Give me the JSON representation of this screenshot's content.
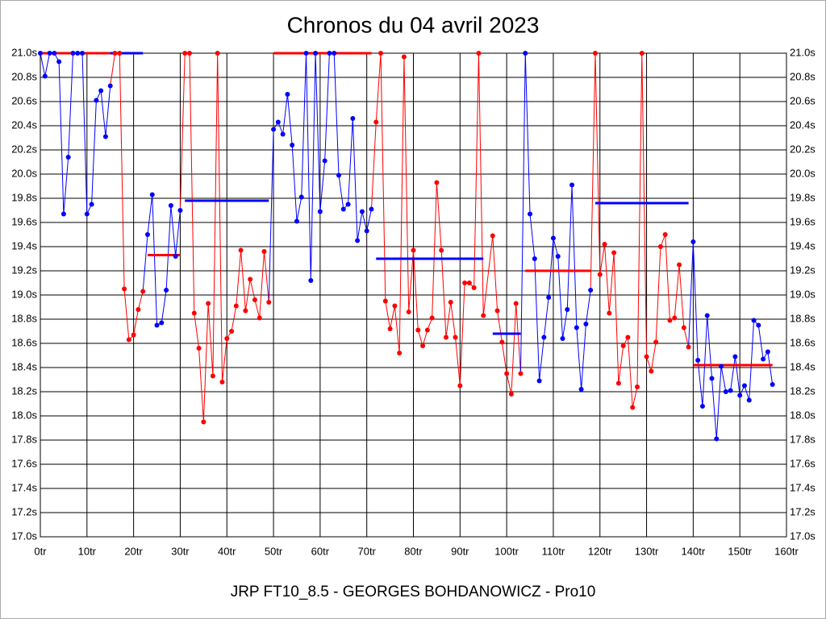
{
  "chart_data": {
    "type": "line",
    "title": "Chronos du 04 avril 2023",
    "xlabel": "JRP FT10_8.5 - GEORGES BOHDANOWICZ - Pro10",
    "xlim": [
      0,
      160
    ],
    "ylim": [
      17.0,
      21.0
    ],
    "grid": true,
    "xticks": [
      {
        "value": 0,
        "label": "0tr"
      },
      {
        "value": 10,
        "label": "10tr"
      },
      {
        "value": 20,
        "label": "20tr"
      },
      {
        "value": 30,
        "label": "30tr"
      },
      {
        "value": 40,
        "label": "40tr"
      },
      {
        "value": 50,
        "label": "50tr"
      },
      {
        "value": 60,
        "label": "60tr"
      },
      {
        "value": 70,
        "label": "70tr"
      },
      {
        "value": 80,
        "label": "80tr"
      },
      {
        "value": 90,
        "label": "90tr"
      },
      {
        "value": 100,
        "label": "100tr"
      },
      {
        "value": 110,
        "label": "110tr"
      },
      {
        "value": 120,
        "label": "120tr"
      },
      {
        "value": 130,
        "label": "130tr"
      },
      {
        "value": 140,
        "label": "140tr"
      },
      {
        "value": 150,
        "label": "150tr"
      },
      {
        "value": 160,
        "label": "160tr"
      }
    ],
    "yticks": [
      {
        "value": 17.0,
        "label": "17.0s"
      },
      {
        "value": 17.2,
        "label": "17.2s"
      },
      {
        "value": 17.4,
        "label": "17.4s"
      },
      {
        "value": 17.6,
        "label": "17.6s"
      },
      {
        "value": 17.8,
        "label": "17.8s"
      },
      {
        "value": 18.0,
        "label": "18.0s"
      },
      {
        "value": 18.2,
        "label": "18.2s"
      },
      {
        "value": 18.4,
        "label": "18.4s"
      },
      {
        "value": 18.6,
        "label": "18.6s"
      },
      {
        "value": 18.8,
        "label": "18.8s"
      },
      {
        "value": 19.0,
        "label": "19.0s"
      },
      {
        "value": 19.2,
        "label": "19.2s"
      },
      {
        "value": 19.4,
        "label": "19.4s"
      },
      {
        "value": 19.6,
        "label": "19.6s"
      },
      {
        "value": 19.8,
        "label": "19.8s"
      },
      {
        "value": 20.0,
        "label": "20.0s"
      },
      {
        "value": 20.2,
        "label": "20.2s"
      },
      {
        "value": 20.4,
        "label": "20.4s"
      },
      {
        "value": 20.6,
        "label": "20.6s"
      },
      {
        "value": 20.8,
        "label": "20.8s"
      },
      {
        "value": 21.0,
        "label": "21.0s"
      }
    ],
    "series": [
      {
        "color": "#0000ff",
        "x": [
          0,
          1,
          2,
          3,
          4,
          5,
          6,
          7,
          8,
          9,
          10,
          11,
          12,
          13,
          14,
          15
        ],
        "values": [
          21.0,
          20.81,
          21.0,
          21.0,
          20.93,
          19.67,
          20.14,
          21.0,
          21.0,
          21.0,
          19.67,
          19.75,
          20.61,
          20.69,
          20.31,
          20.73
        ]
      },
      {
        "color": "#ff0000",
        "x": [
          16,
          17,
          18,
          19,
          20,
          21,
          22
        ],
        "values": [
          21.0,
          21.0,
          19.05,
          18.63,
          18.67,
          18.88,
          19.03
        ]
      },
      {
        "color": "#0000ff",
        "x": [
          23,
          24,
          25,
          26,
          27,
          28,
          29,
          30
        ],
        "values": [
          19.5,
          19.83,
          18.75,
          18.77,
          19.04,
          19.74,
          19.32,
          19.7
        ]
      },
      {
        "color": "#ff0000",
        "x": [
          31,
          32,
          33,
          34,
          35,
          36,
          37,
          38,
          39,
          40,
          41,
          42,
          43,
          44,
          45,
          46,
          47,
          48,
          49
        ],
        "values": [
          21.0,
          21.0,
          18.85,
          18.56,
          17.95,
          18.93,
          18.33,
          21.0,
          18.28,
          18.64,
          18.7,
          18.91,
          19.37,
          18.87,
          19.13,
          18.96,
          18.81,
          19.36,
          18.94
        ]
      },
      {
        "color": "#0000ff",
        "x": [
          50,
          51,
          52,
          53,
          54,
          55,
          56,
          57,
          58,
          59,
          60,
          61,
          62,
          63,
          64,
          65,
          66,
          67,
          68,
          69,
          70,
          71
        ],
        "values": [
          20.37,
          20.43,
          20.33,
          20.66,
          20.24,
          19.61,
          19.81,
          21.0,
          19.12,
          21.0,
          19.69,
          20.11,
          21.0,
          21.0,
          19.99,
          19.71,
          19.75,
          20.46,
          19.45,
          19.69,
          19.53,
          19.71
        ]
      },
      {
        "color": "#ff0000",
        "x": [
          72,
          73,
          74,
          75,
          76,
          77,
          78,
          79,
          80,
          81,
          82,
          83,
          84,
          85,
          86,
          87,
          88,
          89,
          90,
          91,
          92,
          93,
          94,
          95
        ],
        "values": [
          20.43,
          21.0,
          18.95,
          18.72,
          18.91,
          18.52,
          20.97,
          18.86,
          19.37,
          18.71,
          18.58,
          18.71,
          18.81,
          19.93,
          19.37,
          18.65,
          18.94,
          18.65,
          18.25,
          19.1,
          19.1,
          19.06,
          21.0,
          18.83
        ]
      },
      {
        "color": "#ff0000",
        "x": [
          97,
          98,
          99,
          100,
          101,
          102,
          103
        ],
        "values": [
          19.49,
          18.87,
          18.61,
          18.35,
          18.18,
          18.93,
          18.35
        ]
      },
      {
        "color": "#0000ff",
        "x": [
          104,
          105,
          106,
          107,
          108,
          109,
          110,
          111,
          112,
          113,
          114,
          115,
          116,
          117,
          118
        ],
        "values": [
          21.0,
          19.67,
          19.3,
          18.29,
          18.65,
          18.98,
          19.47,
          19.32,
          18.64,
          18.88,
          19.91,
          18.73,
          18.22,
          18.76,
          19.04
        ]
      },
      {
        "color": "#ff0000",
        "x": [
          119,
          120,
          121,
          122,
          123,
          124,
          125,
          126,
          127,
          128,
          129,
          130,
          131,
          132,
          133,
          134,
          135,
          136,
          137,
          138,
          139
        ],
        "values": [
          21.0,
          19.17,
          19.42,
          18.85,
          19.35,
          18.27,
          18.58,
          18.65,
          18.07,
          18.24,
          21.0,
          18.49,
          18.37,
          18.61,
          19.4,
          19.5,
          18.79,
          18.81,
          19.25,
          18.73,
          18.57
        ]
      },
      {
        "color": "#0000ff",
        "x": [
          140,
          141,
          142,
          143,
          144,
          145,
          146,
          147,
          148,
          149,
          150,
          151,
          152,
          153,
          154,
          155,
          156,
          157
        ],
        "values": [
          19.44,
          18.46,
          18.08,
          18.83,
          18.31,
          17.81,
          18.41,
          18.2,
          18.21,
          18.49,
          18.17,
          18.25,
          18.13,
          18.79,
          18.75,
          18.47,
          18.53,
          18.26
        ]
      }
    ],
    "averages": [
      {
        "color": "#ff0000",
        "from": 0,
        "to": 15,
        "value": 21.0
      },
      {
        "color": "#0000ff",
        "from": 15,
        "to": 22,
        "value": 21.0
      },
      {
        "color": "#ff0000",
        "from": 23,
        "to": 30,
        "value": 19.33
      },
      {
        "color": "#0000ff",
        "from": 31,
        "to": 49,
        "value": 19.78
      },
      {
        "color": "#ff0000",
        "from": 50,
        "to": 71,
        "value": 21.0
      },
      {
        "color": "#0000ff",
        "from": 72,
        "to": 95,
        "value": 19.3
      },
      {
        "color": "#0000ff",
        "from": 97,
        "to": 103,
        "value": 18.68
      },
      {
        "color": "#ff0000",
        "from": 104,
        "to": 118,
        "value": 19.2
      },
      {
        "color": "#0000ff",
        "from": 119,
        "to": 139,
        "value": 19.76
      },
      {
        "color": "#ff0000",
        "from": 140,
        "to": 157,
        "value": 18.42
      }
    ]
  }
}
